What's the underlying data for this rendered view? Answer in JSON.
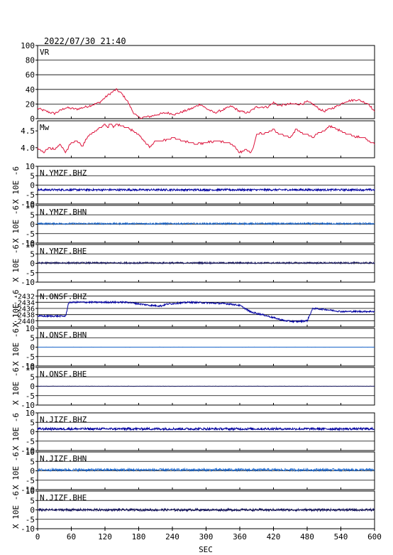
{
  "timestamp": "2022/07/30 21:40",
  "colors": {
    "red": "#dc143c",
    "navy": "#0000a0",
    "blue": "#1a64c8",
    "dark": "#1a1a60",
    "frame": "#000000"
  },
  "chart_data": [
    {
      "type": "line",
      "label": "VR",
      "ylim": [
        0,
        100
      ],
      "yticks": [
        "100",
        "80",
        "60",
        "40",
        "20",
        "0"
      ],
      "ytick_values": [
        100,
        80,
        60,
        40,
        20,
        0
      ],
      "grid": true,
      "x": [
        0,
        20,
        30,
        50,
        70,
        90,
        110,
        125,
        140,
        150,
        160,
        170,
        180,
        190,
        200,
        215,
        230,
        245,
        260,
        275,
        290,
        300,
        315,
        330,
        345,
        360,
        375,
        390,
        410,
        420,
        430,
        450,
        470,
        480,
        490,
        500,
        510,
        530,
        550,
        570,
        590,
        600
      ],
      "y": [
        14,
        9,
        7,
        15,
        13,
        17,
        22,
        32,
        40,
        34,
        24,
        9,
        1,
        2,
        3,
        6,
        8,
        6,
        10,
        14,
        20,
        14,
        8,
        12,
        17,
        10,
        8,
        16,
        16,
        22,
        18,
        20,
        20,
        23,
        20,
        14,
        10,
        16,
        24,
        26,
        20,
        9
      ]
    },
    {
      "type": "line",
      "label": "Mw",
      "ylim": [
        3.7,
        4.8
      ],
      "yticks": [
        "4.5",
        "4.0"
      ],
      "ytick_values": [
        4.5,
        4.0
      ],
      "grid": false,
      "x": [
        0,
        10,
        20,
        30,
        40,
        50,
        60,
        70,
        80,
        90,
        100,
        110,
        120,
        125,
        130,
        135,
        140,
        150,
        160,
        170,
        180,
        190,
        200,
        205,
        210,
        220,
        240,
        260,
        280,
        300,
        320,
        340,
        350,
        360,
        370,
        380,
        385,
        390,
        410,
        420,
        430,
        440,
        450,
        460,
        470,
        480,
        490,
        500,
        510,
        520,
        540,
        560,
        580,
        600
      ],
      "y": [
        4.0,
        3.85,
        4.0,
        3.95,
        4.1,
        3.85,
        4.15,
        4.2,
        4.05,
        4.35,
        4.45,
        4.6,
        4.7,
        4.6,
        4.75,
        4.6,
        4.7,
        4.65,
        4.6,
        4.5,
        4.4,
        4.2,
        4.0,
        4.1,
        4.2,
        4.2,
        4.3,
        4.2,
        4.1,
        4.15,
        4.2,
        4.15,
        4.05,
        3.85,
        3.95,
        3.85,
        4.05,
        4.4,
        4.45,
        4.55,
        4.4,
        4.35,
        4.3,
        4.55,
        4.45,
        4.4,
        4.3,
        4.45,
        4.5,
        4.65,
        4.5,
        4.35,
        4.3,
        4.1
      ]
    },
    {
      "type": "line",
      "label": "N.YMZF.BHZ",
      "ylim": [
        -10,
        10
      ],
      "yticks": [
        "10",
        "5",
        "0",
        "-5",
        "-10"
      ],
      "ytick_values": [
        10,
        5,
        0,
        -5,
        -10
      ],
      "units": "X 10E -6",
      "trend": [
        [
          0,
          -2.5
        ],
        [
          600,
          -2.5
        ]
      ],
      "amplitude": 0.5,
      "color": "navy"
    },
    {
      "type": "line",
      "label": "N.YMZF.BHN",
      "ylim": [
        -10,
        10
      ],
      "yticks": [
        "10",
        "5",
        "0",
        "-5",
        "-10"
      ],
      "ytick_values": [
        10,
        5,
        0,
        -5,
        -10
      ],
      "units": "X 10E -6",
      "trend": [
        [
          0,
          0.3
        ],
        [
          600,
          0.3
        ]
      ],
      "amplitude": 0.4,
      "color": "blue"
    },
    {
      "type": "line",
      "label": "N.YMZF.BHE",
      "ylim": [
        -10,
        10
      ],
      "yticks": [
        "10",
        "5",
        "0",
        "-5",
        "-10"
      ],
      "ytick_values": [
        10,
        5,
        0,
        -5,
        -10
      ],
      "units": "X 10E -6",
      "trend": [
        [
          0,
          0.2
        ],
        [
          600,
          0.2
        ]
      ],
      "amplitude": 0.4,
      "color": "dark"
    },
    {
      "type": "line",
      "label": "N.ONSF.BHZ",
      "ylim": [
        -2442,
        -2430
      ],
      "yticks": [
        "-2432",
        "-2434",
        "-2436",
        "-2438",
        "-2440"
      ],
      "ytick_values": [
        -2432,
        -2434,
        -2436,
        -2438,
        -2440
      ],
      "units": "X 10E -6",
      "trend": [
        [
          0,
          -2438.5
        ],
        [
          50,
          -2438.5
        ],
        [
          55,
          -2434.3
        ],
        [
          60,
          -2434
        ],
        [
          120,
          -2434
        ],
        [
          160,
          -2434
        ],
        [
          180,
          -2434.5
        ],
        [
          200,
          -2435
        ],
        [
          220,
          -2435.2
        ],
        [
          230,
          -2434.6
        ],
        [
          270,
          -2434
        ],
        [
          300,
          -2434.2
        ],
        [
          340,
          -2434.5
        ],
        [
          360,
          -2435
        ],
        [
          380,
          -2437.2
        ],
        [
          400,
          -2438
        ],
        [
          420,
          -2439
        ],
        [
          440,
          -2440
        ],
        [
          460,
          -2440.3
        ],
        [
          480,
          -2440
        ],
        [
          490,
          -2436
        ],
        [
          510,
          -2436.3
        ],
        [
          540,
          -2437
        ],
        [
          600,
          -2437
        ]
      ],
      "amplitude": 0.25,
      "color": "navy"
    },
    {
      "type": "line",
      "label": "N.ONSF.BHN",
      "ylim": [
        -10,
        10
      ],
      "yticks": [
        "10",
        "5",
        "0",
        "-5",
        "-10"
      ],
      "ytick_values": [
        10,
        5,
        0,
        -5,
        -10
      ],
      "units": "X 10E -6",
      "trend": [
        [
          0,
          0
        ],
        [
          600,
          0
        ]
      ],
      "amplitude": 0.02,
      "color": "blue"
    },
    {
      "type": "line",
      "label": "N.ONSF.BHE",
      "ylim": [
        -10,
        10
      ],
      "yticks": [
        "10",
        "5",
        "0",
        "-5",
        "-10"
      ],
      "ytick_values": [
        10,
        5,
        0,
        -5,
        -10
      ],
      "units": "X 10E -6",
      "trend": [
        [
          0,
          0
        ],
        [
          600,
          0
        ]
      ],
      "amplitude": 0.06,
      "color": "dark"
    },
    {
      "type": "line",
      "label": "N.JIZF.BHZ",
      "ylim": [
        -10,
        10
      ],
      "yticks": [
        "10",
        "5",
        "0",
        "-5",
        "-10"
      ],
      "ytick_values": [
        10,
        5,
        0,
        -5,
        -10
      ],
      "units": "X 10E -6",
      "trend": [
        [
          0,
          1.5
        ],
        [
          600,
          1.5
        ]
      ],
      "amplitude": 0.6,
      "color": "navy"
    },
    {
      "type": "line",
      "label": "N.JIZF.BHN",
      "ylim": [
        -10,
        10
      ],
      "yticks": [
        "10",
        "5",
        "0",
        "-5",
        "-10"
      ],
      "ytick_values": [
        10,
        5,
        0,
        -5,
        -10
      ],
      "units": "X 10E -6",
      "trend": [
        [
          0,
          0.5
        ],
        [
          600,
          0.5
        ]
      ],
      "amplitude": 0.6,
      "color": "blue"
    },
    {
      "type": "line",
      "label": "N.JIZF.BHE",
      "ylim": [
        -10,
        10
      ],
      "yticks": [
        "10",
        "5",
        "0",
        "-5",
        "-10"
      ],
      "ytick_values": [
        10,
        5,
        0,
        -5,
        -10
      ],
      "units": "X 10E -6",
      "trend": [
        [
          0,
          0
        ],
        [
          600,
          0
        ]
      ],
      "amplitude": 0.6,
      "color": "dark"
    }
  ],
  "xaxis": {
    "label": "SEC",
    "xlim": [
      0,
      600
    ],
    "ticks": [
      "0",
      "60",
      "120",
      "180",
      "240",
      "300",
      "360",
      "420",
      "480",
      "540",
      "600"
    ],
    "tick_values": [
      0,
      60,
      120,
      180,
      240,
      300,
      360,
      420,
      480,
      540,
      600
    ]
  }
}
